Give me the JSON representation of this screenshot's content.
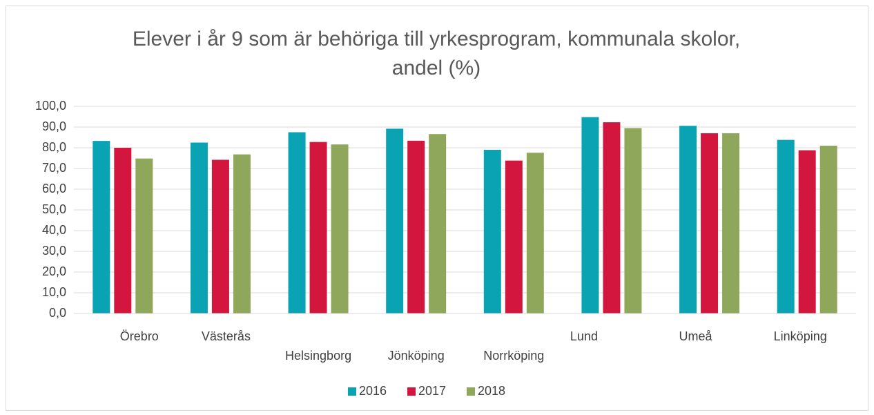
{
  "chart_data": {
    "type": "bar",
    "title": "Elever i år 9 som är behöriga till yrkesprogram, kommunala skolor,  andel (%)",
    "categories": [
      "Örebro",
      "Västerås",
      "Helsingborg",
      "Jönköping",
      "Norrköping",
      "Lund",
      "Umeå",
      "Linköping"
    ],
    "series": [
      {
        "name": "2016",
        "color": "#0aa3b4",
        "values": [
          83.3,
          82.5,
          87.5,
          89.2,
          79.0,
          94.8,
          90.6,
          83.8
        ]
      },
      {
        "name": "2017",
        "color": "#d3163d",
        "values": [
          80.0,
          74.2,
          82.8,
          83.4,
          73.8,
          92.3,
          87.0,
          78.8
        ]
      },
      {
        "name": "2018",
        "color": "#8ea75b",
        "values": [
          74.8,
          76.8,
          81.6,
          86.6,
          77.6,
          89.5,
          87.0,
          81.0
        ]
      }
    ],
    "ylim": [
      0,
      100
    ],
    "yticks": [
      {
        "value": 0,
        "label": "0,0"
      },
      {
        "value": 10,
        "label": "10,0"
      },
      {
        "value": 20,
        "label": "20,0"
      },
      {
        "value": 30,
        "label": "30,0"
      },
      {
        "value": 40,
        "label": "40,0"
      },
      {
        "value": 50,
        "label": "50,0"
      },
      {
        "value": 60,
        "label": "60,0"
      },
      {
        "value": 70,
        "label": "70,0"
      },
      {
        "value": 80,
        "label": "80,0"
      },
      {
        "value": 90,
        "label": "90,0"
      },
      {
        "value": 100,
        "label": "100,0"
      }
    ],
    "grid": true,
    "legend": "bottom"
  }
}
